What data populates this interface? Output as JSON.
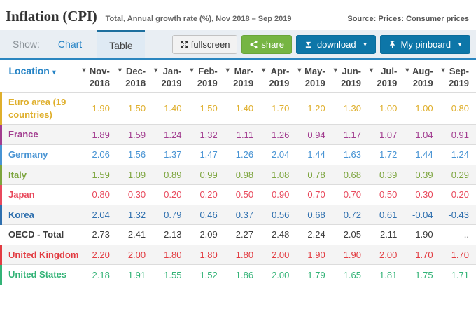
{
  "header": {
    "title": "Inflation (CPI)",
    "subtitle": "Total, Annual growth rate (%), Nov 2018 – Sep 2019",
    "source": "Source: Prices: Consumer prices"
  },
  "toolbar": {
    "show_label": "Show:",
    "tabs": [
      {
        "label": "Chart",
        "active": false
      },
      {
        "label": "Table",
        "active": true
      }
    ],
    "fullscreen_label": "fullscreen",
    "share_label": "share",
    "download_label": "download",
    "pinboard_label": "My pinboard",
    "icons": [
      "fullscreen-icon",
      "share-icon",
      "download-icon",
      "pin-icon",
      "caret-down-icon"
    ],
    "colors": {
      "share_green": "#76b543",
      "button_blue": "#0d76a8",
      "tab_bar_bg": "#e9eef3",
      "tab_active_bg": "#dfeaf4",
      "accent_blue": "#2b86c0"
    }
  },
  "table": {
    "location_header": "Location",
    "columns": [
      "Nov-\n2018",
      "Dec-\n2018",
      "Jan-\n2019",
      "Feb-\n2019",
      "Mar-\n2019",
      "Apr-\n2019",
      "May-\n2019",
      "Jun-\n2019",
      "Jul-\n2019",
      "Aug-\n2019",
      "Sep-\n2019"
    ],
    "rows": [
      {
        "label": "Euro area (19 countries)",
        "color": "#dfaf2c",
        "bar": true,
        "values": [
          "1.90",
          "1.50",
          "1.40",
          "1.50",
          "1.40",
          "1.70",
          "1.20",
          "1.30",
          "1.00",
          "1.00",
          "0.80"
        ]
      },
      {
        "label": "France",
        "color": "#a23c8f",
        "bar": true,
        "values": [
          "1.89",
          "1.59",
          "1.24",
          "1.32",
          "1.11",
          "1.26",
          "0.94",
          "1.17",
          "1.07",
          "1.04",
          "0.91"
        ]
      },
      {
        "label": "Germany",
        "color": "#4793d3",
        "bar": true,
        "values": [
          "2.06",
          "1.56",
          "1.37",
          "1.47",
          "1.26",
          "2.04",
          "1.44",
          "1.63",
          "1.72",
          "1.44",
          "1.24"
        ]
      },
      {
        "label": "Italy",
        "color": "#7ca43d",
        "bar": true,
        "values": [
          "1.59",
          "1.09",
          "0.89",
          "0.99",
          "0.98",
          "1.08",
          "0.78",
          "0.68",
          "0.39",
          "0.39",
          "0.29"
        ]
      },
      {
        "label": "Japan",
        "color": "#e8495c",
        "bar": true,
        "values": [
          "0.80",
          "0.30",
          "0.20",
          "0.20",
          "0.50",
          "0.90",
          "0.70",
          "0.70",
          "0.50",
          "0.30",
          "0.20"
        ]
      },
      {
        "label": "Korea",
        "color": "#2e6fae",
        "bar": true,
        "values": [
          "2.04",
          "1.32",
          "0.79",
          "0.46",
          "0.37",
          "0.56",
          "0.68",
          "0.72",
          "0.61",
          "-0.04",
          "-0.43"
        ]
      },
      {
        "label": "OECD - Total",
        "color": "#3c3c3c",
        "bar": false,
        "values": [
          "2.73",
          "2.41",
          "2.13",
          "2.09",
          "2.27",
          "2.48",
          "2.24",
          "2.05",
          "2.11",
          "1.90",
          ".."
        ]
      },
      {
        "label": "United Kingdom",
        "color": "#e23b41",
        "bar": true,
        "values": [
          "2.20",
          "2.00",
          "1.80",
          "1.80",
          "1.80",
          "2.00",
          "1.90",
          "1.90",
          "2.00",
          "1.70",
          "1.70"
        ]
      },
      {
        "label": "United States",
        "color": "#33b377",
        "bar": true,
        "values": [
          "2.18",
          "1.91",
          "1.55",
          "1.52",
          "1.86",
          "2.00",
          "1.79",
          "1.65",
          "1.81",
          "1.75",
          "1.71"
        ]
      }
    ]
  }
}
